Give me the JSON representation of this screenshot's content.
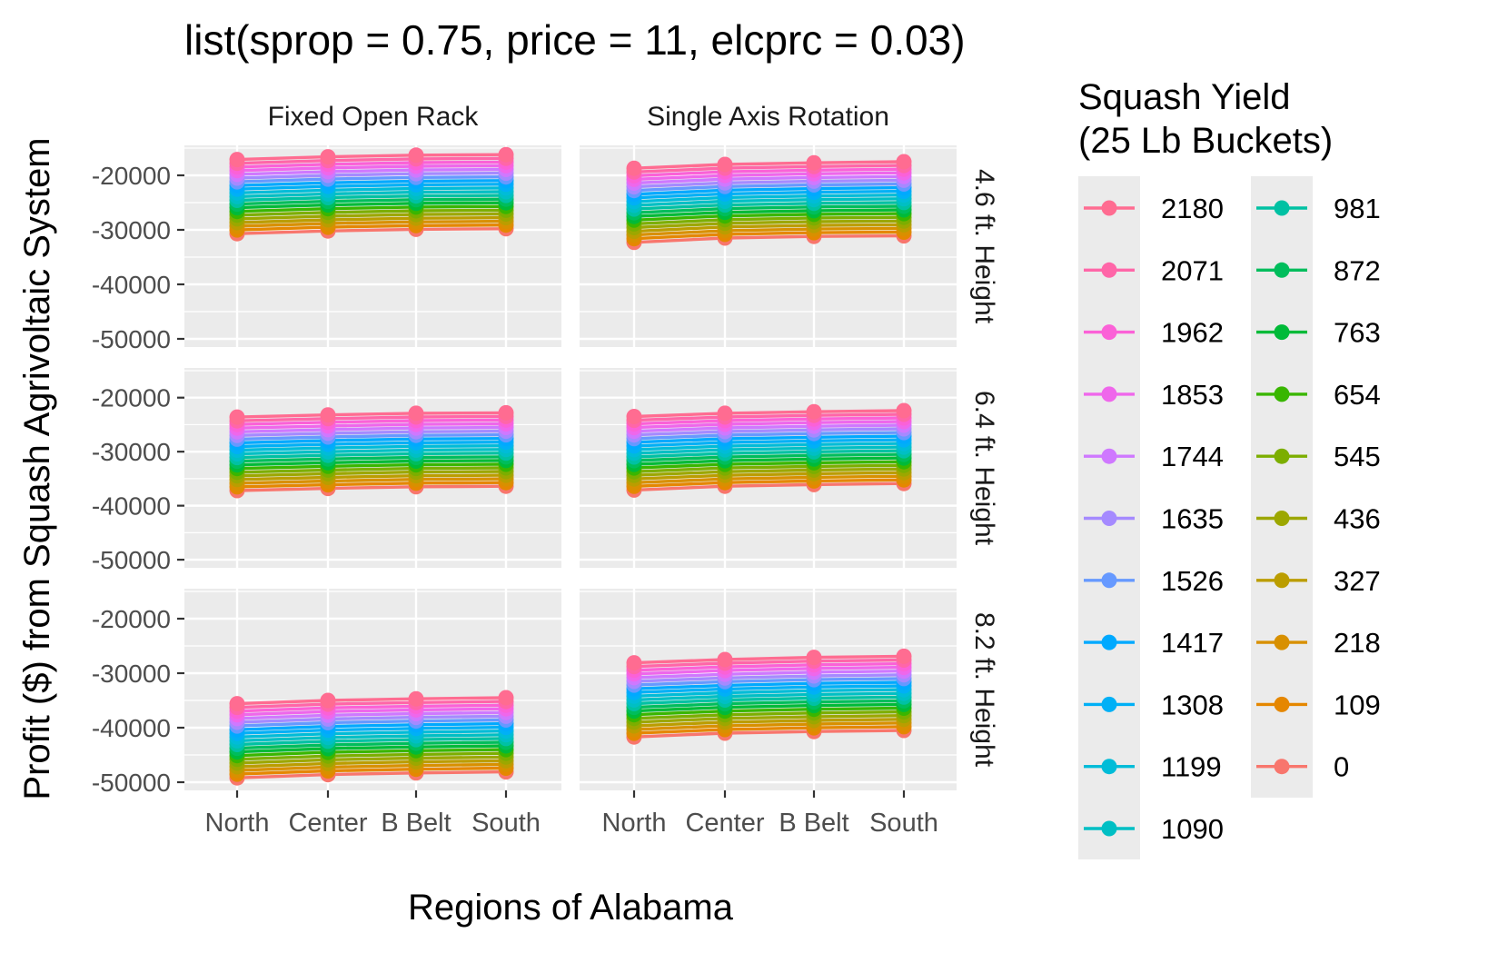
{
  "chart_data": {
    "type": "line",
    "title": "list(sprop = 0.75, price = 11, elcprc = 0.03)",
    "xlabel": "Regions of Alabama",
    "ylabel": "Profit ($) from Squash Agrivoltaic System",
    "categories": [
      "North",
      "Center",
      "B Belt",
      "South"
    ],
    "y_ticks": [
      -20000,
      -30000,
      -40000,
      -50000
    ],
    "ylim": [
      -51500,
      -14500
    ],
    "grid": true,
    "legend_position": "right",
    "col_facets": [
      "Fixed Open Rack",
      "Single Axis Rotation"
    ],
    "row_facets": [
      "4.6 ft. Height",
      "6.4 ft. Height",
      "8.2 ft. Height"
    ],
    "legend": {
      "title_lines": [
        "Squash Yield",
        " (25 Lb Buckets)"
      ],
      "entries": [
        {
          "label": "2180",
          "color": "#FF6C91"
        },
        {
          "label": "2071",
          "color": "#FF66A8"
        },
        {
          "label": "1962",
          "color": "#FB61D7"
        },
        {
          "label": "1853",
          "color": "#EF67EB"
        },
        {
          "label": "1744",
          "color": "#CF78FF"
        },
        {
          "label": "1635",
          "color": "#A58AFF"
        },
        {
          "label": "1526",
          "color": "#6699FF"
        },
        {
          "label": "1417",
          "color": "#00A9FF"
        },
        {
          "label": "1308",
          "color": "#00B0F6"
        },
        {
          "label": "1199",
          "color": "#00BCD8"
        },
        {
          "label": "1090",
          "color": "#00BFC4"
        },
        {
          "label": "981",
          "color": "#00C1A3"
        },
        {
          "label": "872",
          "color": "#00BD5C"
        },
        {
          "label": "763",
          "color": "#00BA38"
        },
        {
          "label": "654",
          "color": "#39B600"
        },
        {
          "label": "545",
          "color": "#7CAE00"
        },
        {
          "label": "436",
          "color": "#9CA700"
        },
        {
          "label": "327",
          "color": "#BB9D00"
        },
        {
          "label": "218",
          "color": "#D89000"
        },
        {
          "label": "109",
          "color": "#E58700"
        },
        {
          "label": "0",
          "color": "#F8766D"
        }
      ]
    },
    "panels": [
      {
        "row": 0,
        "col": 0,
        "top_series": [
          -17100,
          -16600,
          -16300,
          -16200
        ],
        "bottom_series": [
          -30700,
          -30200,
          -29900,
          -29800
        ]
      },
      {
        "row": 0,
        "col": 1,
        "top_series": [
          -18700,
          -18000,
          -17700,
          -17500
        ],
        "bottom_series": [
          -32300,
          -31500,
          -31200,
          -31100
        ]
      },
      {
        "row": 1,
        "col": 0,
        "top_series": [
          -23600,
          -23200,
          -22900,
          -22800
        ],
        "bottom_series": [
          -37200,
          -36800,
          -36500,
          -36400
        ]
      },
      {
        "row": 1,
        "col": 1,
        "top_series": [
          -23500,
          -22900,
          -22600,
          -22400
        ],
        "bottom_series": [
          -37100,
          -36400,
          -36100,
          -35900
        ]
      },
      {
        "row": 2,
        "col": 0,
        "top_series": [
          -35600,
          -35000,
          -34700,
          -34500
        ],
        "bottom_series": [
          -49200,
          -48600,
          -48300,
          -48100
        ]
      },
      {
        "row": 2,
        "col": 1,
        "top_series": [
          -28100,
          -27500,
          -27100,
          -26900
        ],
        "bottom_series": [
          -41700,
          -41000,
          -40700,
          -40500
        ]
      }
    ],
    "series_note_values": "each panel holds 21 equally spaced series, linearly interpolated between top_series (yield 2180) and bottom_series (yield 0)"
  }
}
